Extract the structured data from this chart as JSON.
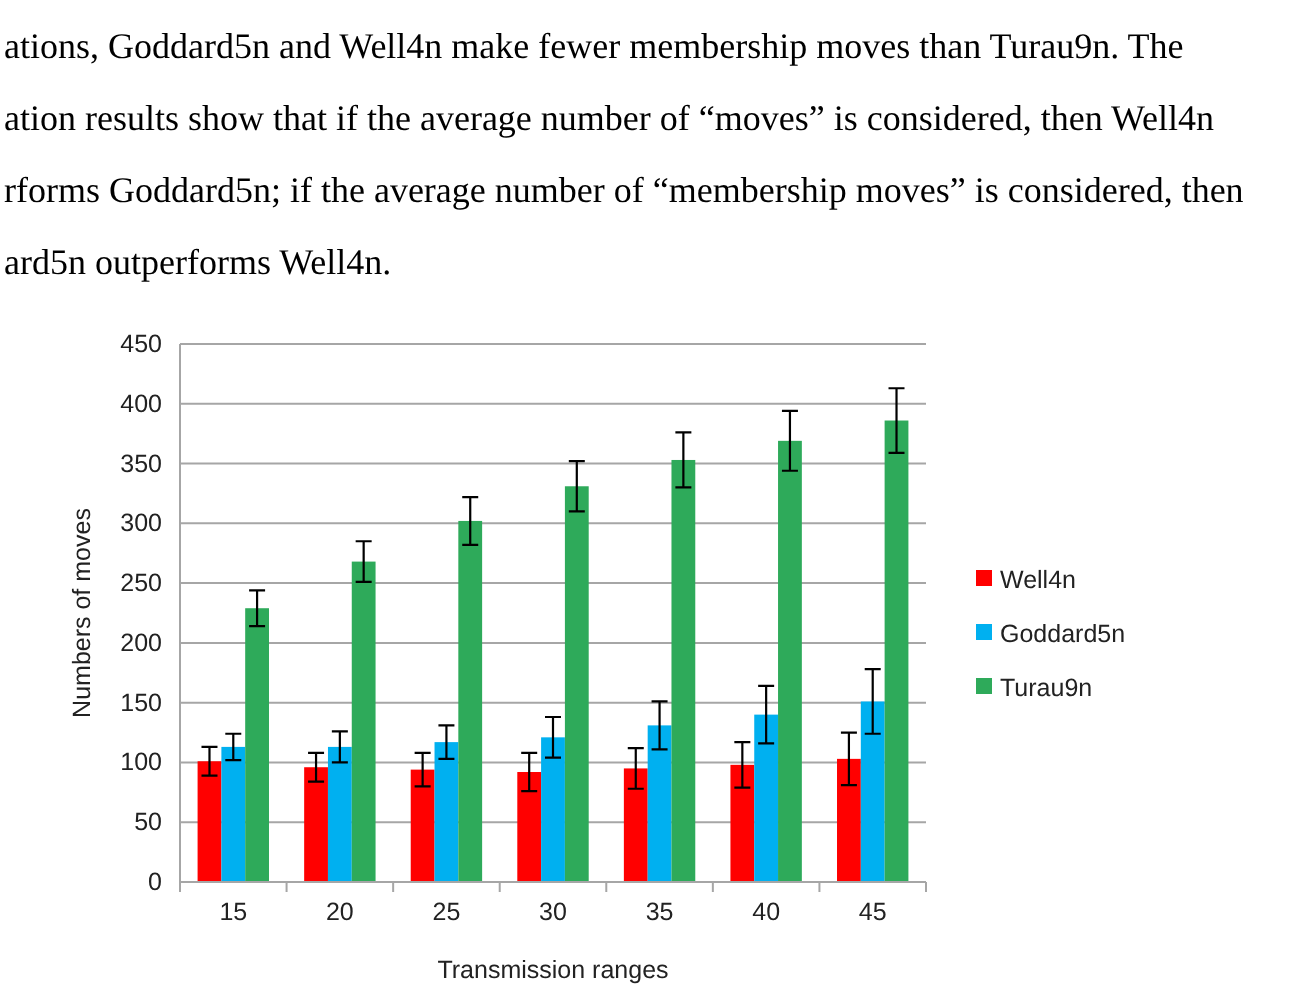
{
  "chart_data": {
    "type": "bar",
    "annotations": [
      "ations, Goddard5n and Well4n make fewer membership moves than Turau9n.  The",
      "ation results show that if the average number of “moves” is considered, then Well4n",
      "rforms Goddard5n; if the average number of “membership moves” is considered, then",
      "ard5n outperforms Well4n."
    ],
    "xlabel": "Transmission ranges",
    "ylabel": "Numbers of moves",
    "categories": [
      "15",
      "20",
      "25",
      "30",
      "35",
      "40",
      "45"
    ],
    "series": [
      {
        "name": "Well4n",
        "color": "#ff0000",
        "values": [
          101,
          96,
          94,
          92,
          95,
          98,
          103
        ],
        "errors": [
          12,
          12,
          14,
          16,
          17,
          19,
          22
        ]
      },
      {
        "name": "Goddard5n",
        "color": "#00b0f0",
        "values": [
          113,
          113,
          117,
          121,
          131,
          140,
          151
        ],
        "errors": [
          11,
          13,
          14,
          17,
          20,
          24,
          27
        ]
      },
      {
        "name": "Turau9n",
        "color": "#2eaa5a",
        "values": [
          229,
          268,
          302,
          331,
          353,
          369,
          386
        ],
        "errors": [
          15,
          17,
          20,
          21,
          23,
          25,
          27
        ]
      }
    ],
    "ylim": [
      0,
      450
    ],
    "yticks": [
      0,
      50,
      100,
      150,
      200,
      250,
      300,
      350,
      400,
      450
    ],
    "grid": "y",
    "legend": "right"
  }
}
